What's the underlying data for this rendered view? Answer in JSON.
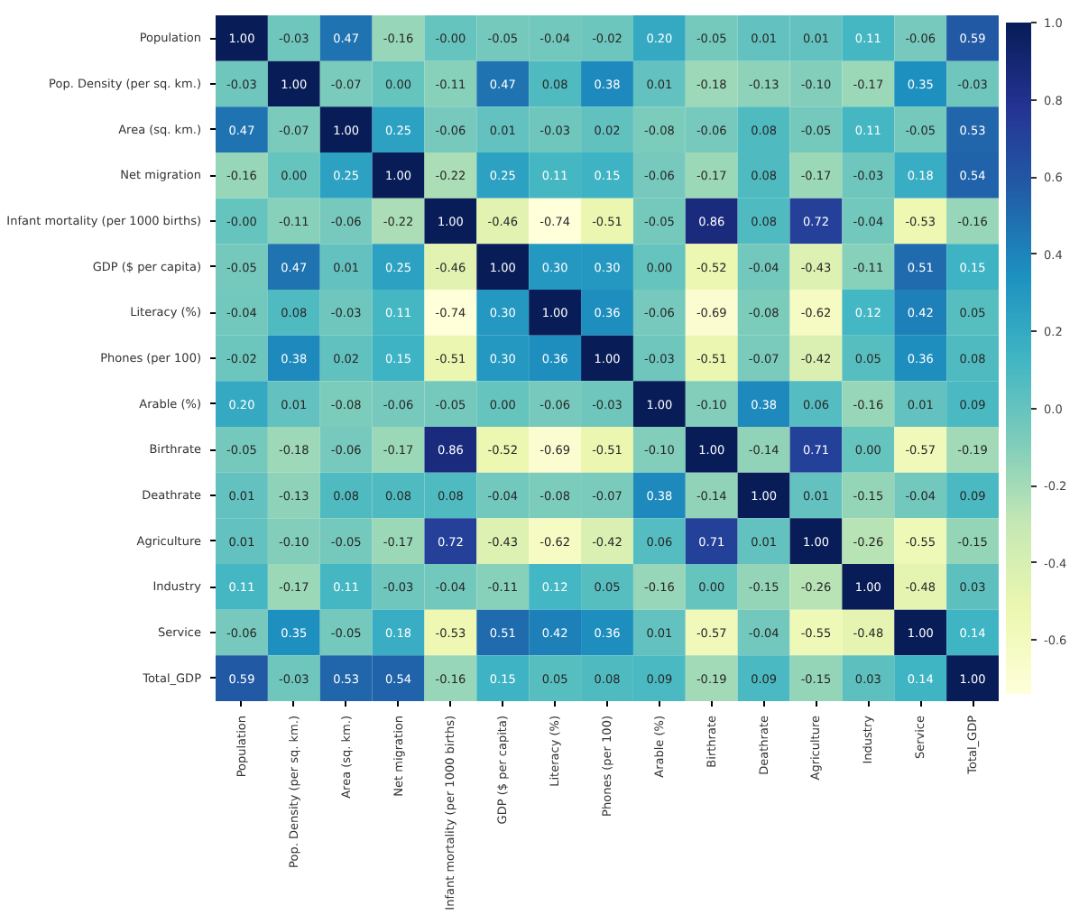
{
  "chart_data": {
    "type": "heatmap",
    "categories": [
      "Population",
      "Pop. Density (per sq. km.)",
      "Area (sq. km.)",
      "Net migration",
      "Infant mortality (per 1000 births)",
      "GDP ($ per capita)",
      "Literacy (%)",
      "Phones (per 100)",
      "Arable (%)",
      "Birthrate",
      "Deathrate",
      "Agriculture",
      "Industry",
      "Service",
      "Total_GDP"
    ],
    "y_categories": [
      "Population",
      "Pop. Density (per sq. km.)",
      "Area (sq. km.)",
      "Net migration",
      "Infant mortality (per 1000 births)",
      "GDP ($ per capita)",
      "Literacy (%)",
      "Phones (per 100)",
      "Arable (%)",
      "Birthrate",
      "Deathrate",
      "Agriculture",
      "Industry",
      "Service",
      "Total_GDP"
    ],
    "cells": [
      [
        1.0,
        -0.03,
        0.47,
        -0.16,
        -0.0,
        -0.05,
        -0.04,
        -0.02,
        0.2,
        -0.05,
        0.01,
        0.01,
        0.11,
        -0.06,
        0.59
      ],
      [
        -0.03,
        1.0,
        -0.07,
        0.0,
        -0.11,
        0.47,
        0.08,
        0.38,
        0.01,
        -0.18,
        -0.13,
        -0.1,
        -0.17,
        0.35,
        -0.03
      ],
      [
        0.47,
        -0.07,
        1.0,
        0.25,
        -0.06,
        0.01,
        -0.03,
        0.02,
        -0.08,
        -0.06,
        0.08,
        -0.05,
        0.11,
        -0.05,
        0.53
      ],
      [
        -0.16,
        0.0,
        0.25,
        1.0,
        -0.22,
        0.25,
        0.11,
        0.15,
        -0.06,
        -0.17,
        0.08,
        -0.17,
        -0.03,
        0.18,
        0.54
      ],
      [
        -0.0,
        -0.11,
        -0.06,
        -0.22,
        1.0,
        -0.46,
        -0.74,
        -0.51,
        -0.05,
        0.86,
        0.08,
        0.72,
        -0.04,
        -0.53,
        -0.16
      ],
      [
        -0.05,
        0.47,
        0.01,
        0.25,
        -0.46,
        1.0,
        0.3,
        0.3,
        0.0,
        -0.52,
        -0.04,
        -0.43,
        -0.11,
        0.51,
        0.15
      ],
      [
        -0.04,
        0.08,
        -0.03,
        0.11,
        -0.74,
        0.3,
        1.0,
        0.36,
        -0.06,
        -0.69,
        -0.08,
        -0.62,
        0.12,
        0.42,
        0.05
      ],
      [
        -0.02,
        0.38,
        0.02,
        0.15,
        -0.51,
        0.3,
        0.36,
        1.0,
        -0.03,
        -0.51,
        -0.07,
        -0.42,
        0.05,
        0.36,
        0.08
      ],
      [
        0.2,
        0.01,
        -0.08,
        -0.06,
        -0.05,
        0.0,
        -0.06,
        -0.03,
        1.0,
        -0.1,
        0.38,
        0.06,
        -0.16,
        0.01,
        0.09
      ],
      [
        -0.05,
        -0.18,
        -0.06,
        -0.17,
        0.86,
        -0.52,
        -0.69,
        -0.51,
        -0.1,
        1.0,
        -0.14,
        0.71,
        0.0,
        -0.57,
        -0.19
      ],
      [
        0.01,
        -0.13,
        0.08,
        0.08,
        0.08,
        -0.04,
        -0.08,
        -0.07,
        0.38,
        -0.14,
        1.0,
        0.01,
        -0.15,
        -0.04,
        0.09
      ],
      [
        0.01,
        -0.1,
        -0.05,
        -0.17,
        0.72,
        -0.43,
        -0.62,
        -0.42,
        0.06,
        0.71,
        0.01,
        1.0,
        -0.26,
        -0.55,
        -0.15
      ],
      [
        0.11,
        -0.17,
        0.11,
        -0.03,
        -0.04,
        -0.11,
        0.12,
        0.05,
        -0.16,
        0.0,
        -0.15,
        -0.26,
        1.0,
        -0.48,
        0.03
      ],
      [
        -0.06,
        0.35,
        -0.05,
        0.18,
        -0.53,
        0.51,
        0.42,
        0.36,
        0.01,
        -0.57,
        -0.04,
        -0.55,
        -0.48,
        1.0,
        0.14
      ],
      [
        0.59,
        -0.03,
        0.53,
        0.54,
        -0.16,
        0.15,
        0.05,
        0.08,
        0.09,
        -0.19,
        0.09,
        -0.15,
        0.03,
        0.14,
        1.0
      ]
    ],
    "cell_labels": [
      [
        "1.00",
        "-0.03",
        "0.47",
        "-0.16",
        "-0.00",
        "-0.05",
        "-0.04",
        "-0.02",
        "0.20",
        "-0.05",
        "0.01",
        "0.01",
        "0.11",
        "-0.06",
        "0.59"
      ],
      [
        "-0.03",
        "1.00",
        "-0.07",
        "0.00",
        "-0.11",
        "0.47",
        "0.08",
        "0.38",
        "0.01",
        "-0.18",
        "-0.13",
        "-0.10",
        "-0.17",
        "0.35",
        "-0.03"
      ],
      [
        "0.47",
        "-0.07",
        "1.00",
        "0.25",
        "-0.06",
        "0.01",
        "-0.03",
        "0.02",
        "-0.08",
        "-0.06",
        "0.08",
        "-0.05",
        "0.11",
        "-0.05",
        "0.53"
      ],
      [
        "-0.16",
        "0.00",
        "0.25",
        "1.00",
        "-0.22",
        "0.25",
        "0.11",
        "0.15",
        "-0.06",
        "-0.17",
        "0.08",
        "-0.17",
        "-0.03",
        "0.18",
        "0.54"
      ],
      [
        "-0.00",
        "-0.11",
        "-0.06",
        "-0.22",
        "1.00",
        "-0.46",
        "-0.74",
        "-0.51",
        "-0.05",
        "0.86",
        "0.08",
        "0.72",
        "-0.04",
        "-0.53",
        "-0.16"
      ],
      [
        "-0.05",
        "0.47",
        "0.01",
        "0.25",
        "-0.46",
        "1.00",
        "0.30",
        "0.30",
        "0.00",
        "-0.52",
        "-0.04",
        "-0.43",
        "-0.11",
        "0.51",
        "0.15"
      ],
      [
        "-0.04",
        "0.08",
        "-0.03",
        "0.11",
        "-0.74",
        "0.30",
        "1.00",
        "0.36",
        "-0.06",
        "-0.69",
        "-0.08",
        "-0.62",
        "0.12",
        "0.42",
        "0.05"
      ],
      [
        "-0.02",
        "0.38",
        "0.02",
        "0.15",
        "-0.51",
        "0.30",
        "0.36",
        "1.00",
        "-0.03",
        "-0.51",
        "-0.07",
        "-0.42",
        "0.05",
        "0.36",
        "0.08"
      ],
      [
        "0.20",
        "0.01",
        "-0.08",
        "-0.06",
        "-0.05",
        "0.00",
        "-0.06",
        "-0.03",
        "1.00",
        "-0.10",
        "0.38",
        "0.06",
        "-0.16",
        "0.01",
        "0.09"
      ],
      [
        "-0.05",
        "-0.18",
        "-0.06",
        "-0.17",
        "0.86",
        "-0.52",
        "-0.69",
        "-0.51",
        "-0.10",
        "1.00",
        "-0.14",
        "0.71",
        "0.00",
        "-0.57",
        "-0.19"
      ],
      [
        "0.01",
        "-0.13",
        "0.08",
        "0.08",
        "0.08",
        "-0.04",
        "-0.08",
        "-0.07",
        "0.38",
        "-0.14",
        "1.00",
        "0.01",
        "-0.15",
        "-0.04",
        "0.09"
      ],
      [
        "0.01",
        "-0.10",
        "-0.05",
        "-0.17",
        "0.72",
        "-0.43",
        "-0.62",
        "-0.42",
        "0.06",
        "0.71",
        "0.01",
        "1.00",
        "-0.26",
        "-0.55",
        "-0.15"
      ],
      [
        "0.11",
        "-0.17",
        "0.11",
        "-0.03",
        "-0.04",
        "-0.11",
        "0.12",
        "0.05",
        "-0.16",
        "0.00",
        "-0.15",
        "-0.26",
        "1.00",
        "-0.48",
        "0.03"
      ],
      [
        "-0.06",
        "0.35",
        "-0.05",
        "0.18",
        "-0.53",
        "0.51",
        "0.42",
        "0.36",
        "0.01",
        "-0.57",
        "-0.04",
        "-0.55",
        "-0.48",
        "1.00",
        "0.14"
      ],
      [
        "0.59",
        "-0.03",
        "0.53",
        "0.54",
        "-0.16",
        "0.15",
        "0.05",
        "0.08",
        "0.09",
        "-0.19",
        "0.09",
        "-0.15",
        "0.03",
        "0.14",
        "1.00"
      ]
    ],
    "clim": [
      -0.74,
      1.0
    ],
    "cticks": [
      {
        "value": -0.6,
        "label": "-0.6"
      },
      {
        "value": -0.4,
        "label": "-0.4"
      },
      {
        "value": -0.2,
        "label": "-0.2"
      },
      {
        "value": 0.0,
        "label": "0.0"
      },
      {
        "value": 0.2,
        "label": "0.2"
      },
      {
        "value": 0.4,
        "label": "0.4"
      },
      {
        "value": 0.6,
        "label": "0.6"
      },
      {
        "value": 0.8,
        "label": "0.8"
      },
      {
        "value": 1.0,
        "label": "1.0"
      }
    ],
    "data_labels": true
  }
}
